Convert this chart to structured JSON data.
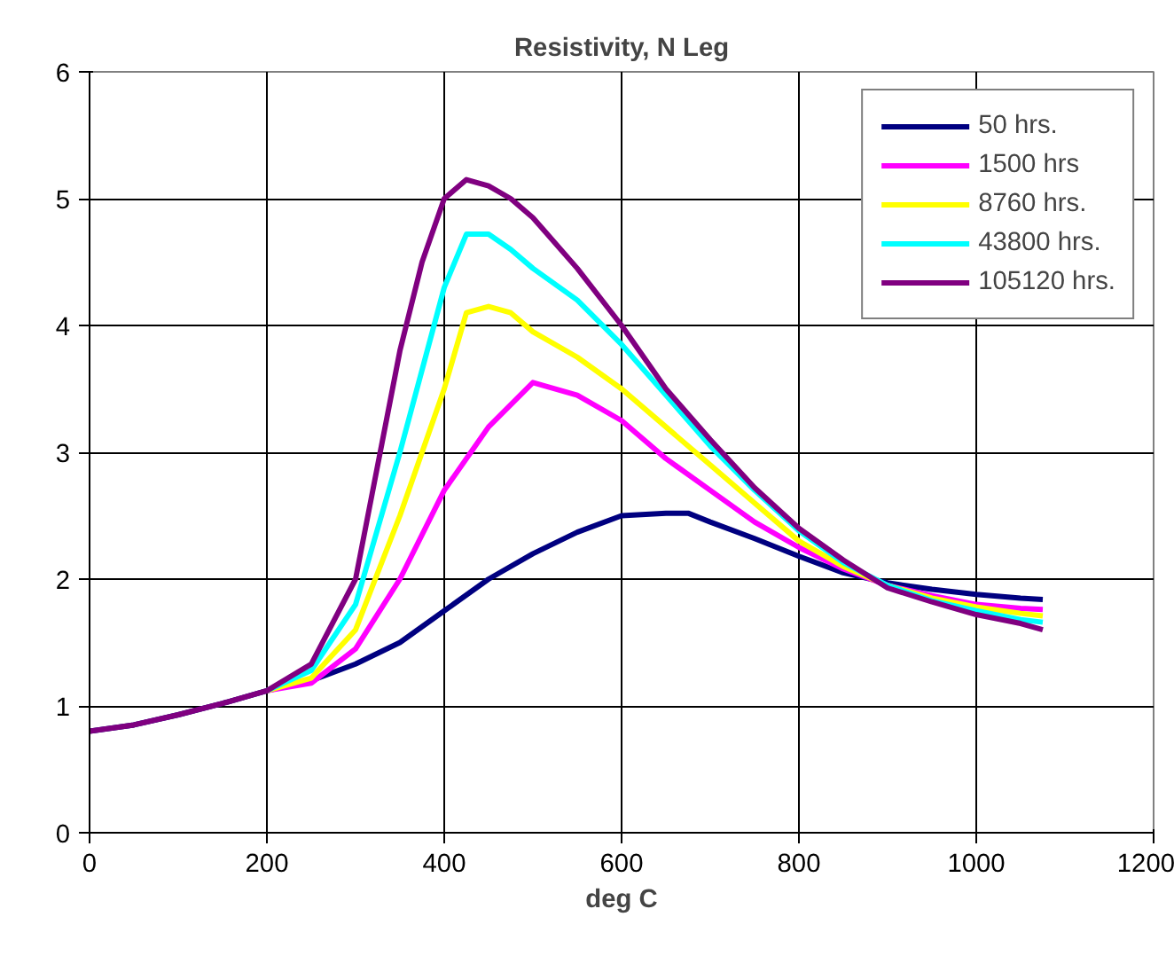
{
  "chart_data": {
    "type": "line",
    "title": "Resistivity, N Leg",
    "xlabel": "deg C",
    "xlim": [
      0,
      1200
    ],
    "ylim": [
      0,
      6
    ],
    "xticks": [
      0,
      200,
      400,
      600,
      800,
      1000,
      1200
    ],
    "yticks": [
      0,
      1,
      2,
      3,
      4,
      5,
      6
    ],
    "grid": true,
    "legend": "top right",
    "marker": "none",
    "line_style": "solid",
    "series": [
      {
        "name": "50 hrs.",
        "color": "#000080",
        "x": [
          0,
          50,
          100,
          150,
          200,
          250,
          300,
          350,
          400,
          450,
          500,
          550,
          600,
          650,
          675,
          700,
          750,
          800,
          850,
          900,
          950,
          1000,
          1050,
          1075
        ],
        "values": [
          0.8,
          0.85,
          0.93,
          1.02,
          1.12,
          1.2,
          1.33,
          1.5,
          1.75,
          2.0,
          2.2,
          2.37,
          2.5,
          2.52,
          2.52,
          2.45,
          2.32,
          2.18,
          2.05,
          1.97,
          1.92,
          1.88,
          1.85,
          1.84
        ]
      },
      {
        "name": "1500 hrs",
        "color": "#ff00ff",
        "x": [
          200,
          250,
          300,
          350,
          400,
          450,
          500,
          550,
          600,
          650,
          700,
          750,
          800,
          850,
          900,
          950,
          1000,
          1050,
          1075
        ],
        "values": [
          1.12,
          1.18,
          1.45,
          2.0,
          2.7,
          3.2,
          3.55,
          3.45,
          3.25,
          2.95,
          2.7,
          2.45,
          2.25,
          2.08,
          1.95,
          1.87,
          1.8,
          1.77,
          1.76
        ]
      },
      {
        "name": "8760 hrs.",
        "color": "#ffff00",
        "x": [
          200,
          250,
          300,
          350,
          400,
          425,
          450,
          475,
          500,
          550,
          600,
          650,
          700,
          750,
          800,
          850,
          900,
          950,
          1000,
          1050,
          1075
        ],
        "values": [
          1.12,
          1.22,
          1.6,
          2.5,
          3.5,
          4.1,
          4.15,
          4.1,
          3.95,
          3.75,
          3.5,
          3.2,
          2.9,
          2.6,
          2.3,
          2.1,
          1.95,
          1.85,
          1.78,
          1.73,
          1.71
        ]
      },
      {
        "name": "43800 hrs.",
        "color": "#00ffff",
        "x": [
          200,
          250,
          300,
          350,
          400,
          425,
          450,
          475,
          500,
          550,
          600,
          650,
          700,
          750,
          800,
          850,
          900,
          950,
          1000,
          1050,
          1075
        ],
        "values": [
          1.12,
          1.28,
          1.8,
          3.0,
          4.3,
          4.72,
          4.72,
          4.6,
          4.45,
          4.2,
          3.85,
          3.45,
          3.05,
          2.7,
          2.38,
          2.13,
          1.95,
          1.83,
          1.75,
          1.68,
          1.66
        ]
      },
      {
        "name": "105120 hrs.",
        "color": "#800080",
        "x": [
          0,
          50,
          100,
          150,
          200,
          250,
          300,
          325,
          350,
          375,
          400,
          425,
          450,
          475,
          500,
          550,
          600,
          650,
          700,
          750,
          800,
          850,
          900,
          950,
          1000,
          1050,
          1075
        ],
        "values": [
          0.8,
          0.85,
          0.93,
          1.02,
          1.12,
          1.33,
          2.0,
          2.9,
          3.8,
          4.5,
          5.0,
          5.15,
          5.1,
          5.0,
          4.85,
          4.45,
          4.0,
          3.5,
          3.1,
          2.72,
          2.4,
          2.15,
          1.93,
          1.82,
          1.72,
          1.65,
          1.6
        ]
      }
    ]
  }
}
